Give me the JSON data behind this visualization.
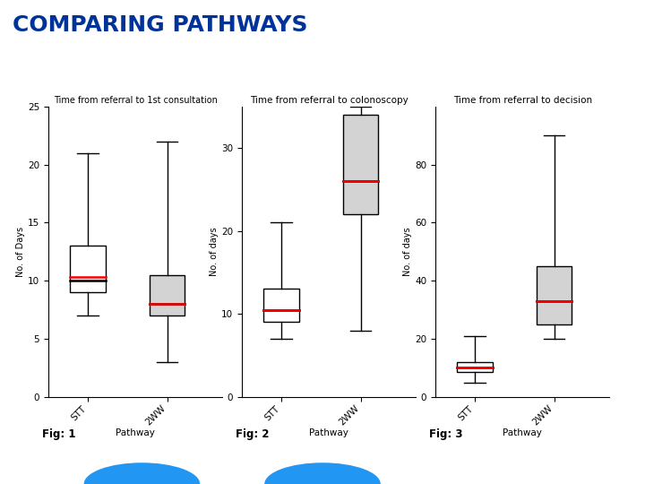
{
  "title": "COMPARING PATHWAYS",
  "title_color": "#003399",
  "title_fontsize": 18,
  "fig1": {
    "subtitle": "Time from referral to 1st consultation",
    "subtitle_fontsize": 7,
    "ylabel": "No. of Days",
    "xlabel": "Pathway",
    "ylim": [
      0,
      25
    ],
    "yticks": [
      0,
      5,
      10,
      15,
      20,
      25
    ],
    "boxes": [
      {
        "label": "STT",
        "whislo": 7,
        "q1": 9,
        "med": 10,
        "q3": 13,
        "whishi": 21,
        "color": "white",
        "redline": 10.3
      },
      {
        "label": "2WW",
        "whislo": 3,
        "q1": 7.0,
        "med": 8.0,
        "q3": 10.5,
        "whishi": 22,
        "color": "#d3d3d3",
        "redline": 8.0
      }
    ]
  },
  "fig2": {
    "subtitle": "Time from referral to colonoscopy",
    "subtitle_fontsize": 7.5,
    "ylabel": "No. of days",
    "xlabel": "Pathway",
    "ylim": [
      0,
      35
    ],
    "yticks": [
      0,
      10,
      20,
      30
    ],
    "boxes": [
      {
        "label": "STT",
        "whislo": 7,
        "q1": 9,
        "med": 10.5,
        "q3": 13,
        "whishi": 21,
        "color": "white",
        "redline": 10.5
      },
      {
        "label": "2WW",
        "whislo": 8,
        "q1": 22,
        "med": 26,
        "q3": 34,
        "whishi": 35,
        "color": "#d3d3d3",
        "redline": 26.0
      }
    ]
  },
  "fig3": {
    "subtitle": "Time from referral to decision",
    "subtitle_fontsize": 7.5,
    "ylabel": "No. of days",
    "xlabel": "Pathway",
    "ylim": [
      0,
      100
    ],
    "yticks": [
      0,
      20,
      40,
      60,
      80
    ],
    "boxes": [
      {
        "label": "STT",
        "whislo": 5,
        "q1": 8.5,
        "med": 10,
        "q3": 12,
        "whishi": 21,
        "color": "white",
        "redline": 10.0
      },
      {
        "label": "2WW",
        "whislo": 20,
        "q1": 25,
        "med": 33,
        "q3": 45,
        "whishi": 90,
        "color": "#d3d3d3",
        "redline": 33.0
      }
    ]
  },
  "fig_labels": [
    "Fig: 1",
    "Fig: 2",
    "Fig: 3"
  ],
  "box_width": 0.45,
  "background_color": "white"
}
